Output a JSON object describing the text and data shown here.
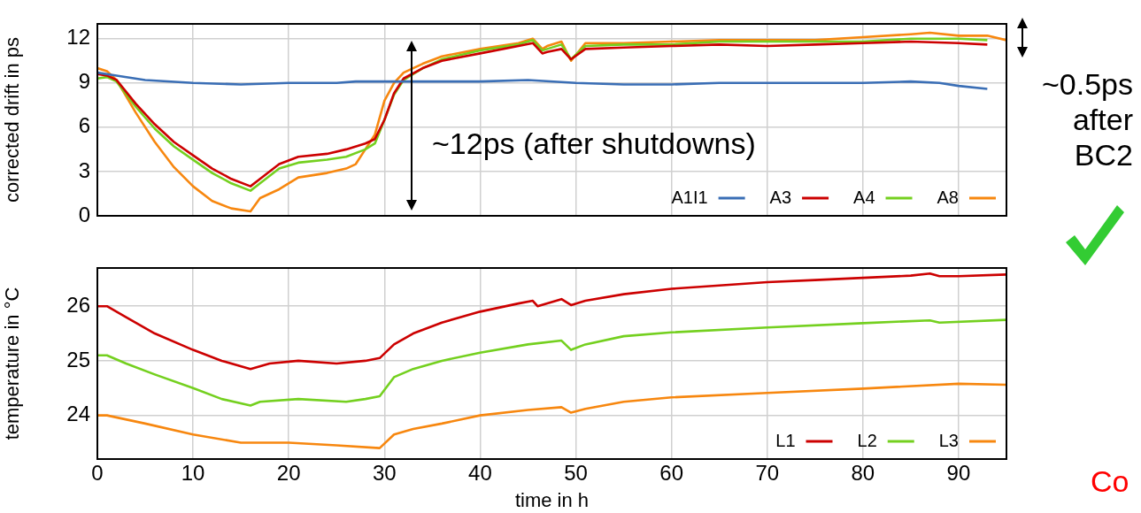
{
  "chart_data": [
    {
      "type": "line",
      "ylabel": "corrected drift in ps",
      "xlim": [
        0,
        95
      ],
      "xticks": [
        0,
        10,
        20,
        30,
        40,
        50,
        60,
        70,
        80,
        90
      ],
      "ylim": [
        0,
        13
      ],
      "yticks": [
        0,
        3,
        6,
        9,
        12
      ],
      "grid": true,
      "legend": "bottom right",
      "tick_labels": "y",
      "annotations": [
        "~12ps (after shutdowns)",
        "~0.5ps after BC2"
      ],
      "series": [
        {
          "name": "A1I1",
          "color": "#3a6eb5",
          "x": [
            0,
            2,
            5,
            10,
            15,
            20,
            25,
            27,
            30,
            35,
            40,
            45,
            50,
            55,
            60,
            65,
            70,
            75,
            80,
            85,
            88,
            90,
            93
          ],
          "values": [
            9.7,
            9.5,
            9.2,
            9.0,
            8.9,
            9.0,
            9.0,
            9.1,
            9.1,
            9.1,
            9.1,
            9.2,
            9.0,
            8.9,
            8.9,
            9.0,
            9.0,
            9.0,
            9.0,
            9.1,
            9.0,
            8.8,
            8.6
          ]
        },
        {
          "name": "A3",
          "color": "#cc0000",
          "x": [
            0,
            1,
            2,
            4,
            6,
            8,
            10,
            12,
            14,
            16,
            17,
            19,
            21,
            24,
            26,
            28,
            29,
            30,
            31,
            32,
            34,
            36,
            40,
            44,
            45.5,
            46.5,
            47,
            48.5,
            49.5,
            51,
            55,
            60,
            65,
            70,
            75,
            80,
            85,
            90,
            93
          ],
          "values": [
            9.6,
            9.5,
            9.2,
            7.6,
            6.2,
            5.0,
            4.1,
            3.2,
            2.5,
            2.0,
            2.5,
            3.5,
            4.0,
            4.2,
            4.5,
            4.9,
            5.2,
            6.5,
            8.3,
            9.3,
            10.0,
            10.5,
            11.0,
            11.5,
            11.7,
            11.0,
            11.1,
            11.3,
            10.6,
            11.3,
            11.4,
            11.5,
            11.6,
            11.5,
            11.6,
            11.7,
            11.8,
            11.7,
            11.6
          ]
        },
        {
          "name": "A4",
          "color": "#74d01f",
          "x": [
            0,
            1,
            2,
            4,
            6,
            8,
            10,
            12,
            14,
            16,
            17,
            19,
            21,
            24,
            26,
            28,
            29,
            30,
            31,
            32,
            34,
            36,
            40,
            44,
            45.5,
            46.5,
            47,
            48.5,
            49.5,
            51,
            55,
            60,
            65,
            70,
            75,
            80,
            85,
            90,
            93
          ],
          "values": [
            9.3,
            9.4,
            9.1,
            7.4,
            5.9,
            4.7,
            3.8,
            2.9,
            2.2,
            1.7,
            2.2,
            3.2,
            3.6,
            3.8,
            4.0,
            4.5,
            4.9,
            6.5,
            8.2,
            9.2,
            10.0,
            10.6,
            11.2,
            11.6,
            11.9,
            11.2,
            11.3,
            11.6,
            10.6,
            11.5,
            11.6,
            11.6,
            11.8,
            11.8,
            11.8,
            11.8,
            12.0,
            12.0,
            11.9
          ]
        },
        {
          "name": "A8",
          "color": "#f7870f",
          "x": [
            0,
            1,
            2,
            4,
            6,
            8,
            10,
            12,
            14,
            16,
            17,
            19,
            21,
            24,
            26,
            27,
            28,
            29,
            30,
            31,
            32,
            34,
            36,
            40,
            44,
            45.5,
            46.5,
            47,
            48.5,
            49.5,
            51,
            55,
            60,
            65,
            70,
            75,
            80,
            85,
            87,
            90,
            93,
            95
          ],
          "values": [
            10.0,
            9.8,
            9.2,
            7.0,
            5.0,
            3.3,
            2.0,
            1.0,
            0.5,
            0.3,
            1.2,
            1.8,
            2.6,
            2.9,
            3.2,
            3.5,
            4.5,
            5.5,
            7.8,
            9.0,
            9.7,
            10.3,
            10.8,
            11.3,
            11.7,
            12.0,
            11.3,
            11.5,
            11.8,
            10.5,
            11.7,
            11.7,
            11.8,
            11.9,
            11.9,
            11.9,
            12.1,
            12.3,
            12.4,
            12.2,
            12.2,
            11.9
          ]
        }
      ]
    },
    {
      "type": "line",
      "xlabel": "time in h",
      "ylabel": "temperature in °C",
      "xlim": [
        0,
        95
      ],
      "xticks": [
        0,
        10,
        20,
        30,
        40,
        50,
        60,
        70,
        80,
        90
      ],
      "ylim": [
        23.2,
        26.7
      ],
      "yticks": [
        24,
        25,
        26
      ],
      "grid": true,
      "legend": "bottom right",
      "annotations": [
        "Co"
      ],
      "series": [
        {
          "name": "L1",
          "color": "#cc0000",
          "x": [
            0,
            1,
            3,
            6,
            10,
            13,
            16,
            18,
            21,
            25,
            28,
            29.5,
            31,
            33,
            36,
            40,
            44,
            45.5,
            46,
            48.5,
            49.5,
            51,
            55,
            60,
            65,
            70,
            75,
            80,
            85,
            87,
            88,
            90,
            95
          ],
          "values": [
            26.0,
            26.0,
            25.8,
            25.5,
            25.2,
            25.0,
            24.85,
            24.95,
            25.0,
            24.95,
            25.0,
            25.05,
            25.3,
            25.5,
            25.7,
            25.9,
            26.05,
            26.1,
            26.0,
            26.13,
            26.02,
            26.1,
            26.22,
            26.32,
            26.38,
            26.44,
            26.48,
            26.52,
            26.56,
            26.6,
            26.55,
            26.55,
            26.58
          ]
        },
        {
          "name": "L2",
          "color": "#74d01f",
          "x": [
            0,
            1,
            3,
            6,
            10,
            13,
            16,
            17,
            21,
            26,
            28,
            29.5,
            31,
            33,
            36,
            40,
            45,
            48.5,
            49.5,
            51,
            55,
            60,
            70,
            80,
            87,
            88,
            95
          ],
          "values": [
            25.1,
            25.1,
            24.95,
            24.75,
            24.5,
            24.3,
            24.18,
            24.25,
            24.3,
            24.25,
            24.3,
            24.35,
            24.7,
            24.85,
            25.0,
            25.15,
            25.3,
            25.37,
            25.2,
            25.3,
            25.45,
            25.52,
            25.61,
            25.69,
            25.74,
            25.7,
            25.75
          ]
        },
        {
          "name": "L3",
          "color": "#f7870f",
          "x": [
            0,
            1,
            5,
            10,
            15,
            20,
            25,
            29.5,
            31,
            33,
            36,
            40,
            45,
            48.5,
            49.5,
            51,
            55,
            60,
            70,
            80,
            90,
            95
          ],
          "values": [
            24.0,
            24.0,
            23.85,
            23.65,
            23.5,
            23.5,
            23.45,
            23.4,
            23.65,
            23.75,
            23.85,
            24.0,
            24.1,
            24.15,
            24.05,
            24.12,
            24.25,
            24.33,
            24.41,
            24.49,
            24.58,
            24.56
          ]
        }
      ]
    }
  ]
}
